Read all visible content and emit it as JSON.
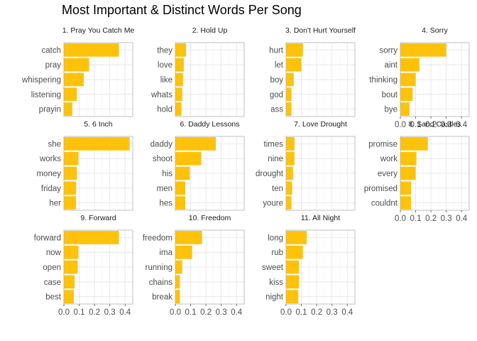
{
  "chart_data": {
    "type": "bar",
    "orientation": "horizontal",
    "title": "Most Important & Distinct Words Per Song",
    "facet_layout": "4 columns x 3 rows, fixed x scale",
    "xlim": [
      0,
      0.45
    ],
    "x_ticks": [
      "0.0",
      "0.1",
      "0.2",
      "0.3",
      "0.4"
    ],
    "x_tick_values": [
      0,
      0.1,
      0.2,
      0.3,
      0.4
    ],
    "xlabel": "",
    "ylabel": "",
    "grid": true,
    "bar_color": "#FFC20A",
    "panels": [
      {
        "title": "1. Pray You Catch Me",
        "categories": [
          "catch",
          "pray",
          "whispering",
          "listening",
          "prayin"
        ],
        "values": [
          0.36,
          0.165,
          0.13,
          0.085,
          0.055
        ]
      },
      {
        "title": "2. Hold Up",
        "categories": [
          "they",
          "love",
          "like",
          "whats",
          "hold"
        ],
        "values": [
          0.07,
          0.055,
          0.05,
          0.045,
          0.04
        ]
      },
      {
        "title": "3. Don't Hurt Yourself",
        "categories": [
          "hurt",
          "let",
          "boy",
          "god",
          "ass"
        ],
        "values": [
          0.11,
          0.1,
          0.05,
          0.035,
          0.035
        ]
      },
      {
        "title": "4. Sorry",
        "categories": [
          "sorry",
          "aint",
          "thinking",
          "bout",
          "bye"
        ],
        "values": [
          0.3,
          0.125,
          0.1,
          0.08,
          0.06
        ]
      },
      {
        "title": "5. 6 Inch",
        "categories": [
          "she",
          "works",
          "money",
          "friday",
          "her"
        ],
        "values": [
          0.43,
          0.095,
          0.085,
          0.08,
          0.08
        ]
      },
      {
        "title": "6. Daddy Lessons",
        "categories": [
          "daddy",
          "shoot",
          "his",
          "men",
          "hes"
        ],
        "values": [
          0.265,
          0.17,
          0.095,
          0.065,
          0.065
        ]
      },
      {
        "title": "7. Love Drought",
        "categories": [
          "times",
          "nine",
          "drought",
          "ten",
          "youre"
        ],
        "values": [
          0.055,
          0.055,
          0.045,
          0.04,
          0.035
        ]
      },
      {
        "title": "8. Sand Castles",
        "categories": [
          "promise",
          "work",
          "every",
          "promised",
          "couldnt"
        ],
        "values": [
          0.18,
          0.105,
          0.1,
          0.07,
          0.07
        ]
      },
      {
        "title": "9. Forward",
        "categories": [
          "forward",
          "now",
          "open",
          "case",
          "best"
        ],
        "values": [
          0.36,
          0.095,
          0.09,
          0.07,
          0.065
        ]
      },
      {
        "title": "10. Freedom",
        "categories": [
          "freedom",
          "ima",
          "running",
          "chains",
          "break"
        ],
        "values": [
          0.175,
          0.11,
          0.045,
          0.03,
          0.03
        ]
      },
      {
        "title": "11. All Night",
        "categories": [
          "long",
          "rub",
          "sweet",
          "kiss",
          "night"
        ],
        "values": [
          0.135,
          0.11,
          0.085,
          0.085,
          0.08
        ]
      }
    ]
  }
}
